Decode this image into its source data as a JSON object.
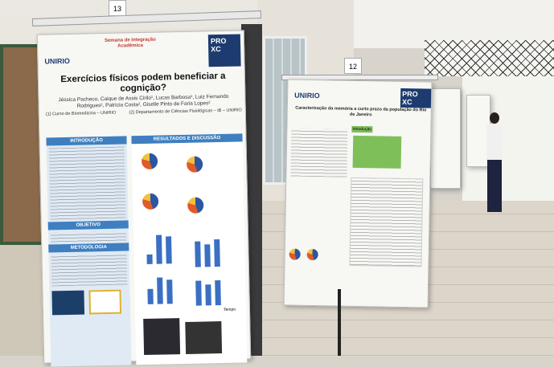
{
  "tags": {
    "left": "13",
    "middle": "12"
  },
  "poster_left": {
    "logos": {
      "university": "UNIRIO",
      "event": "Semana de Integração Acadêmica",
      "prorectorate": "PRO XC"
    },
    "title": "Exercícios físicos podem beneficiar a cognição?",
    "authors": "Jéssica Pacheco, Caique de Assis Cirilo¹, Lucas Barbosa¹, Luiz Fernando Rodrigues², Patrícia Costa², Giselle Pinto de Faria Lopes²",
    "affiliation_1": "(1) Curso de Biomedicina – UNIRIO",
    "affiliation_2": "(2) Departamento de Ciências Fisiológicas – IB – UNIRIO",
    "sections": {
      "intro": "INTRODUÇÃO",
      "results": "RESULTADOS E DISCUSSÃO",
      "objective": "OBJETIVO",
      "methods": "METODOLOGIA"
    },
    "axis_label": "Tempo"
  },
  "poster_middle": {
    "logos": {
      "university": "UNIRIO",
      "prorectorate": "PRO XC"
    },
    "title": "Caracterização da memória a curto prazo da população do Rio de Janeiro",
    "section": "Introdução"
  },
  "colors": {
    "section_header": "#3f7fc0",
    "table_green": "#7fbf5a"
  }
}
